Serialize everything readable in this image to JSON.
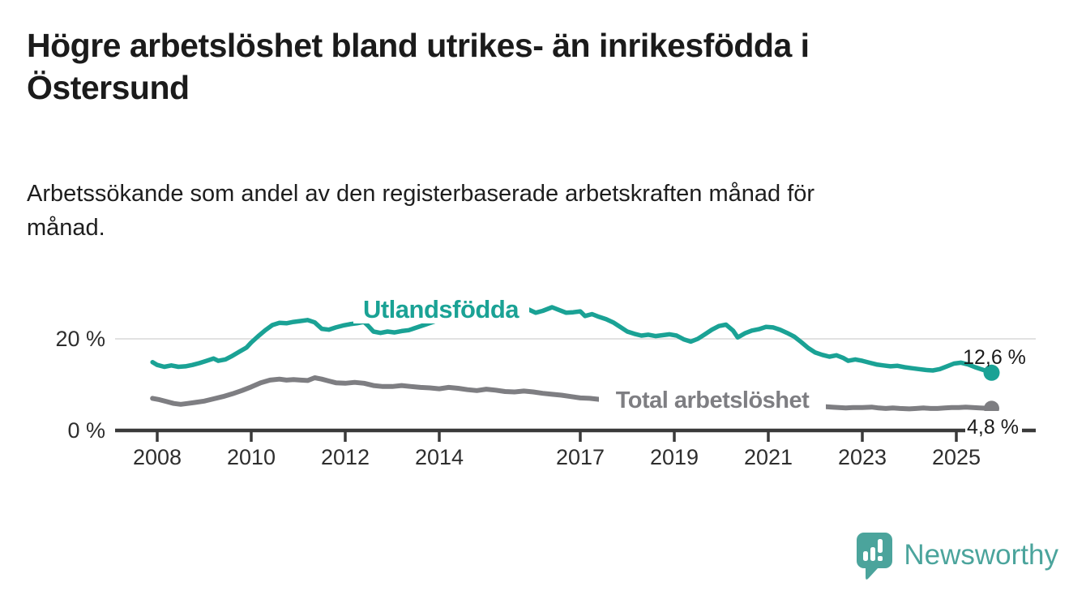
{
  "header": {
    "title_lines": [
      "Högre arbetslöshet bland utrikes- än inrikesfödda i",
      "Östersund"
    ],
    "subtitle_lines": [
      "Arbetssökande som andel av den registerbaserade arbetskraften månad för",
      "månad."
    ]
  },
  "footer": {
    "brand": "Newsworthy",
    "brand_color": "#4ba49c",
    "brand_icon": "newsworthy-speech-bubble-bar-chart-icon"
  },
  "chart_data": {
    "type": "line",
    "title": "Högre arbetslöshet bland utrikes- än inrikesfödda i Östersund",
    "subtitle": "Arbetssökande som andel av den registerbaserade arbetskraften månad för månad.",
    "unit": "%",
    "x_ticks": [
      "2008",
      "2010",
      "2012",
      "2014",
      "2017",
      "2019",
      "2021",
      "2023",
      "2025"
    ],
    "y_ticks": [
      {
        "label": "0 %",
        "value": 0,
        "gridline": false
      },
      {
        "label": "20 %",
        "value": 20,
        "gridline": true
      }
    ],
    "x_range": [
      2007.9,
      2025.75
    ],
    "y_axis_range": [
      0,
      28
    ],
    "grid": "horizontal-20-only",
    "legend_position": "inline-labels-on-lines",
    "colors": {
      "utlandsfodda": "#1aa295",
      "total": "#7e7e82",
      "axis": "#3a3a3a",
      "gridline": "#d8d8d8",
      "end_label_text": "#1a1a1a"
    },
    "series": [
      {
        "name": "Utlandsfödda",
        "color": "#1aa295",
        "end_value": 12.6,
        "end_value_label": "12,6 %",
        "points": [
          [
            2007.9,
            14.9
          ],
          [
            2008.0,
            14.3
          ],
          [
            2008.15,
            13.9
          ],
          [
            2008.3,
            14.2
          ],
          [
            2008.45,
            13.9
          ],
          [
            2008.6,
            14.0
          ],
          [
            2008.75,
            14.3
          ],
          [
            2008.9,
            14.7
          ],
          [
            2009.05,
            15.2
          ],
          [
            2009.2,
            15.7
          ],
          [
            2009.3,
            15.2
          ],
          [
            2009.45,
            15.5
          ],
          [
            2009.6,
            16.3
          ],
          [
            2009.75,
            17.2
          ],
          [
            2009.9,
            18.1
          ],
          [
            2010.0,
            19.2
          ],
          [
            2010.15,
            20.6
          ],
          [
            2010.3,
            21.9
          ],
          [
            2010.45,
            23.0
          ],
          [
            2010.6,
            23.5
          ],
          [
            2010.75,
            23.4
          ],
          [
            2010.9,
            23.7
          ],
          [
            2011.05,
            23.9
          ],
          [
            2011.2,
            24.1
          ],
          [
            2011.35,
            23.6
          ],
          [
            2011.5,
            22.2
          ],
          [
            2011.65,
            22.0
          ],
          [
            2011.8,
            22.5
          ],
          [
            2011.95,
            22.9
          ],
          [
            2012.1,
            23.2
          ],
          [
            2012.25,
            23.4
          ],
          [
            2012.4,
            23.7
          ],
          [
            2012.5,
            22.7
          ],
          [
            2012.6,
            21.6
          ],
          [
            2012.75,
            21.3
          ],
          [
            2012.9,
            21.6
          ],
          [
            2013.05,
            21.4
          ],
          [
            2013.2,
            21.7
          ],
          [
            2013.35,
            21.9
          ],
          [
            2013.5,
            22.4
          ],
          [
            2013.7,
            23.1
          ],
          [
            2013.9,
            23.8
          ],
          [
            2014.2,
            24.5
          ],
          [
            2014.5,
            25.1
          ],
          [
            2014.8,
            25.6
          ],
          [
            2015.1,
            26.0
          ],
          [
            2015.4,
            26.3
          ],
          [
            2015.7,
            26.7
          ],
          [
            2015.9,
            26.4
          ],
          [
            2016.05,
            25.7
          ],
          [
            2016.2,
            26.1
          ],
          [
            2016.4,
            26.9
          ],
          [
            2016.55,
            26.3
          ],
          [
            2016.7,
            25.7
          ],
          [
            2016.85,
            25.8
          ],
          [
            2017.0,
            26.0
          ],
          [
            2017.1,
            25.0
          ],
          [
            2017.25,
            25.4
          ],
          [
            2017.4,
            24.8
          ],
          [
            2017.55,
            24.3
          ],
          [
            2017.7,
            23.6
          ],
          [
            2017.85,
            22.6
          ],
          [
            2018.0,
            21.6
          ],
          [
            2018.15,
            21.1
          ],
          [
            2018.3,
            20.7
          ],
          [
            2018.45,
            20.9
          ],
          [
            2018.6,
            20.6
          ],
          [
            2018.75,
            20.8
          ],
          [
            2018.9,
            21.0
          ],
          [
            2019.05,
            20.7
          ],
          [
            2019.2,
            19.9
          ],
          [
            2019.35,
            19.4
          ],
          [
            2019.5,
            20.0
          ],
          [
            2019.65,
            21.0
          ],
          [
            2019.8,
            22.0
          ],
          [
            2019.95,
            22.8
          ],
          [
            2020.1,
            23.1
          ],
          [
            2020.25,
            21.8
          ],
          [
            2020.35,
            20.3
          ],
          [
            2020.5,
            21.2
          ],
          [
            2020.65,
            21.8
          ],
          [
            2020.8,
            22.1
          ],
          [
            2020.95,
            22.6
          ],
          [
            2021.1,
            22.5
          ],
          [
            2021.25,
            22.0
          ],
          [
            2021.4,
            21.3
          ],
          [
            2021.55,
            20.5
          ],
          [
            2021.7,
            19.3
          ],
          [
            2021.85,
            18.0
          ],
          [
            2022.0,
            17.0
          ],
          [
            2022.15,
            16.5
          ],
          [
            2022.3,
            16.1
          ],
          [
            2022.45,
            16.4
          ],
          [
            2022.6,
            15.8
          ],
          [
            2022.7,
            15.2
          ],
          [
            2022.85,
            15.5
          ],
          [
            2023.0,
            15.2
          ],
          [
            2023.15,
            14.8
          ],
          [
            2023.3,
            14.4
          ],
          [
            2023.45,
            14.2
          ],
          [
            2023.6,
            14.0
          ],
          [
            2023.75,
            14.1
          ],
          [
            2023.9,
            13.8
          ],
          [
            2024.05,
            13.6
          ],
          [
            2024.2,
            13.4
          ],
          [
            2024.35,
            13.2
          ],
          [
            2024.5,
            13.1
          ],
          [
            2024.65,
            13.4
          ],
          [
            2024.8,
            14.0
          ],
          [
            2024.95,
            14.6
          ],
          [
            2025.1,
            14.8
          ],
          [
            2025.25,
            14.4
          ],
          [
            2025.4,
            13.8
          ],
          [
            2025.55,
            13.3
          ],
          [
            2025.75,
            12.6
          ]
        ]
      },
      {
        "name": "Total arbetslöshet",
        "color": "#7e7e82",
        "end_value": 4.8,
        "end_value_label": "4,8 %",
        "points": [
          [
            2007.9,
            7.0
          ],
          [
            2008.05,
            6.7
          ],
          [
            2008.2,
            6.3
          ],
          [
            2008.35,
            5.9
          ],
          [
            2008.5,
            5.7
          ],
          [
            2008.65,
            5.9
          ],
          [
            2008.8,
            6.1
          ],
          [
            2009.0,
            6.4
          ],
          [
            2009.2,
            6.9
          ],
          [
            2009.4,
            7.4
          ],
          [
            2009.6,
            8.0
          ],
          [
            2009.8,
            8.7
          ],
          [
            2010.0,
            9.5
          ],
          [
            2010.2,
            10.4
          ],
          [
            2010.4,
            11.0
          ],
          [
            2010.6,
            11.2
          ],
          [
            2010.75,
            11.0
          ],
          [
            2010.9,
            11.1
          ],
          [
            2011.05,
            11.0
          ],
          [
            2011.2,
            10.9
          ],
          [
            2011.35,
            11.5
          ],
          [
            2011.5,
            11.2
          ],
          [
            2011.65,
            10.8
          ],
          [
            2011.8,
            10.4
          ],
          [
            2012.0,
            10.3
          ],
          [
            2012.2,
            10.5
          ],
          [
            2012.4,
            10.3
          ],
          [
            2012.6,
            9.8
          ],
          [
            2012.8,
            9.6
          ],
          [
            2013.0,
            9.6
          ],
          [
            2013.2,
            9.8
          ],
          [
            2013.4,
            9.6
          ],
          [
            2013.6,
            9.4
          ],
          [
            2013.8,
            9.3
          ],
          [
            2014.0,
            9.1
          ],
          [
            2014.2,
            9.4
          ],
          [
            2014.4,
            9.2
          ],
          [
            2014.6,
            8.9
          ],
          [
            2014.8,
            8.7
          ],
          [
            2015.0,
            9.0
          ],
          [
            2015.2,
            8.8
          ],
          [
            2015.4,
            8.5
          ],
          [
            2015.6,
            8.4
          ],
          [
            2015.8,
            8.6
          ],
          [
            2016.0,
            8.4
          ],
          [
            2016.2,
            8.1
          ],
          [
            2016.4,
            7.9
          ],
          [
            2016.6,
            7.7
          ],
          [
            2016.8,
            7.4
          ],
          [
            2017.0,
            7.1
          ],
          [
            2017.2,
            7.0
          ],
          [
            2017.4,
            6.8
          ],
          [
            2017.8,
            6.5
          ],
          [
            2018.2,
            6.3
          ],
          [
            2018.6,
            6.1
          ],
          [
            2019.0,
            6.0
          ],
          [
            2019.4,
            5.9
          ],
          [
            2019.8,
            6.2
          ],
          [
            2020.2,
            6.8
          ],
          [
            2020.6,
            6.9
          ],
          [
            2021.0,
            6.5
          ],
          [
            2021.4,
            6.0
          ],
          [
            2021.8,
            5.5
          ],
          [
            2022.2,
            5.2
          ],
          [
            2022.35,
            5.1
          ],
          [
            2022.5,
            5.0
          ],
          [
            2022.65,
            4.9
          ],
          [
            2022.8,
            5.0
          ],
          [
            2023.0,
            5.0
          ],
          [
            2023.2,
            5.1
          ],
          [
            2023.35,
            4.9
          ],
          [
            2023.5,
            4.8
          ],
          [
            2023.65,
            4.9
          ],
          [
            2023.8,
            4.8
          ],
          [
            2024.0,
            4.7
          ],
          [
            2024.15,
            4.8
          ],
          [
            2024.3,
            4.9
          ],
          [
            2024.45,
            4.8
          ],
          [
            2024.6,
            4.8
          ],
          [
            2024.75,
            4.9
          ],
          [
            2024.9,
            5.0
          ],
          [
            2025.05,
            5.0
          ],
          [
            2025.2,
            5.1
          ],
          [
            2025.35,
            5.0
          ],
          [
            2025.5,
            4.9
          ],
          [
            2025.75,
            4.8
          ]
        ]
      }
    ]
  }
}
